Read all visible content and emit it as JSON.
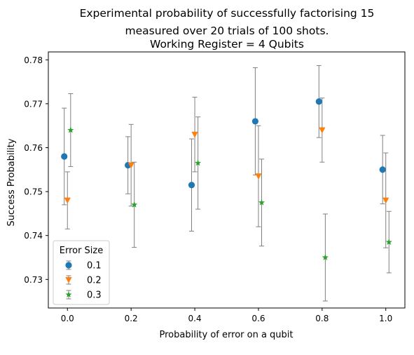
{
  "chart_data": {
    "type": "scatter",
    "title_lines": [
      "Experimental probability of successfully factorising 15",
      "measured over 20 trials of 100 shots.",
      "Working Register = 4 Qubits"
    ],
    "xlabel": "Probability of error on a qubit",
    "ylabel": "Success Probability",
    "xlim": [
      -0.06,
      1.06
    ],
    "ylim": [
      0.7235,
      0.7818
    ],
    "xticks": [
      0.0,
      0.2,
      0.4,
      0.6,
      0.8,
      1.0
    ],
    "xtick_labels": [
      "0.0",
      "0.2",
      "0.4",
      "0.6",
      "0.8",
      "1.0"
    ],
    "yticks": [
      0.73,
      0.74,
      0.75,
      0.76,
      0.77,
      0.78
    ],
    "ytick_labels": [
      "0.73",
      "0.74",
      "0.75",
      "0.76",
      "0.77",
      "0.78"
    ],
    "grid": false,
    "legend": {
      "title": "Error Size",
      "placement": "lower-left"
    },
    "series": [
      {
        "name": "0.1",
        "marker": "circle",
        "color": "#1f77b4",
        "x": [
          0.0,
          0.2,
          0.4,
          0.6,
          0.8,
          1.0
        ],
        "x_offset": -0.01,
        "y": [
          0.758,
          0.756,
          0.7515,
          0.766,
          0.7705,
          0.755
        ],
        "yerr": [
          0.011,
          0.0065,
          0.0105,
          0.0122,
          0.0082,
          0.0078
        ]
      },
      {
        "name": "0.2",
        "marker": "triangle-down",
        "color": "#ff7f0e",
        "x": [
          0.0,
          0.2,
          0.4,
          0.6,
          0.8,
          1.0
        ],
        "x_offset": 0.0,
        "y": [
          0.748,
          0.756,
          0.763,
          0.7535,
          0.764,
          0.748
        ],
        "yerr": [
          0.0065,
          0.0093,
          0.0085,
          0.0115,
          0.0073,
          0.0108
        ]
      },
      {
        "name": "0.3",
        "marker": "star",
        "color": "#2ca02c",
        "x": [
          0.0,
          0.2,
          0.4,
          0.6,
          0.8,
          1.0
        ],
        "x_offset": 0.01,
        "y": [
          0.764,
          0.747,
          0.7565,
          0.7475,
          0.735,
          0.7385
        ],
        "yerr": [
          0.0083,
          0.0097,
          0.0105,
          0.0099,
          0.0099,
          0.007
        ]
      }
    ],
    "errorbar_color": "#808080"
  }
}
